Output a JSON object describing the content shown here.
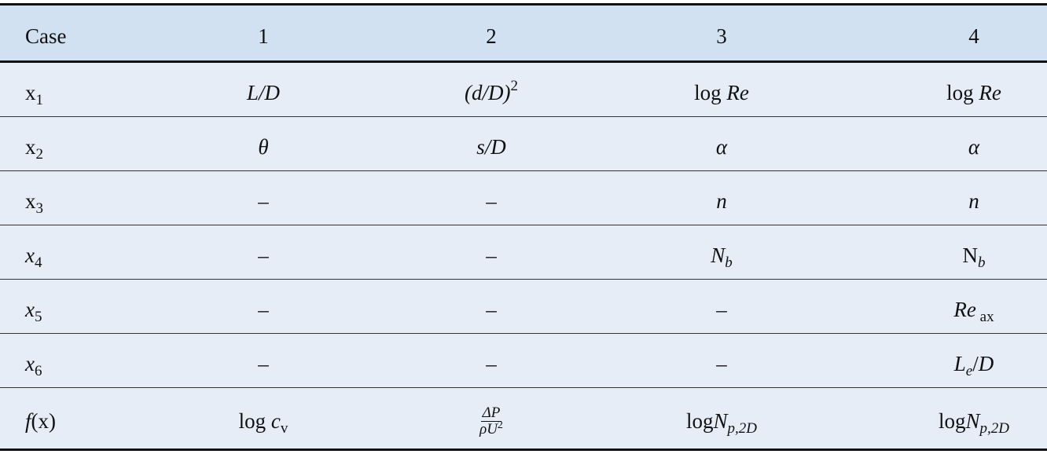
{
  "colors": {
    "header_bg": "#d1e1f1",
    "body_bg": "#e6edf7",
    "rule": "#111111"
  },
  "header": [
    "Case",
    "1",
    "2",
    "3",
    "4"
  ],
  "rows": [
    {
      "cells": [
        [
          {
            "t": "x"
          },
          {
            "t": "1",
            "v": "sub"
          }
        ],
        [
          {
            "t": "L/D",
            "i": true
          }
        ],
        [
          {
            "t": "(d/D)",
            "i": true
          },
          {
            "t": "2",
            "v": "sup"
          }
        ],
        [
          {
            "t": "log "
          },
          {
            "t": "Re",
            "i": true
          }
        ],
        [
          {
            "t": "log "
          },
          {
            "t": "Re",
            "i": true
          }
        ]
      ]
    },
    {
      "cells": [
        [
          {
            "t": "x"
          },
          {
            "t": "2",
            "v": "sub"
          }
        ],
        [
          {
            "t": "θ",
            "i": true
          }
        ],
        [
          {
            "t": "s/D",
            "i": true
          }
        ],
        [
          {
            "t": "α",
            "i": true
          }
        ],
        [
          {
            "t": "α",
            "i": true
          }
        ]
      ]
    },
    {
      "cells": [
        [
          {
            "t": "x"
          },
          {
            "t": "3",
            "v": "sub"
          }
        ],
        [
          {
            "t": "–"
          }
        ],
        [
          {
            "t": "–"
          }
        ],
        [
          {
            "t": "n",
            "i": true
          }
        ],
        [
          {
            "t": "n",
            "i": true
          }
        ]
      ]
    },
    {
      "cells": [
        [
          {
            "t": "x",
            "i": true
          },
          {
            "t": "4",
            "v": "sub"
          }
        ],
        [
          {
            "t": "–"
          }
        ],
        [
          {
            "t": "–"
          }
        ],
        [
          {
            "t": "N",
            "i": true
          },
          {
            "t": "b",
            "i": true,
            "v": "sub"
          }
        ],
        [
          {
            "t": "N"
          },
          {
            "t": "b",
            "i": true,
            "v": "sub"
          }
        ]
      ]
    },
    {
      "cells": [
        [
          {
            "t": "x",
            "i": true
          },
          {
            "t": "5",
            "v": "sub"
          }
        ],
        [
          {
            "t": "–"
          }
        ],
        [
          {
            "t": "–"
          }
        ],
        [
          {
            "t": "–"
          }
        ],
        [
          {
            "t": "Re",
            "i": true
          },
          {
            "t": " ax",
            "v": "sub"
          }
        ]
      ]
    },
    {
      "cells": [
        [
          {
            "t": "x",
            "i": true
          },
          {
            "t": "6",
            "v": "sub"
          }
        ],
        [
          {
            "t": "–"
          }
        ],
        [
          {
            "t": "–"
          }
        ],
        [
          {
            "t": "–"
          }
        ],
        [
          {
            "t": "L",
            "i": true
          },
          {
            "t": "e",
            "i": true,
            "v": "sub"
          },
          {
            "t": "/"
          },
          {
            "t": "D",
            "i": true
          }
        ]
      ]
    },
    {
      "cells": [
        [
          {
            "t": "f",
            "i": true
          },
          {
            "t": "(x)"
          }
        ],
        [
          {
            "t": "log "
          },
          {
            "t": "c",
            "i": true
          },
          {
            "t": "v",
            "v": "sub"
          }
        ],
        [
          {
            "frac": {
              "num": [
                {
                  "t": "ΔP",
                  "i": true
                }
              ],
              "den": [
                {
                  "t": "ρU",
                  "i": true
                },
                {
                  "t": "2",
                  "v": "sup"
                }
              ]
            }
          }
        ],
        [
          {
            "t": "log"
          },
          {
            "t": "N",
            "i": true
          },
          {
            "t": "p,2D",
            "i": true,
            "v": "sub"
          }
        ],
        [
          {
            "t": "log"
          },
          {
            "t": "N",
            "i": true
          },
          {
            "t": "p,2D",
            "i": true,
            "v": "sub"
          }
        ]
      ]
    }
  ]
}
